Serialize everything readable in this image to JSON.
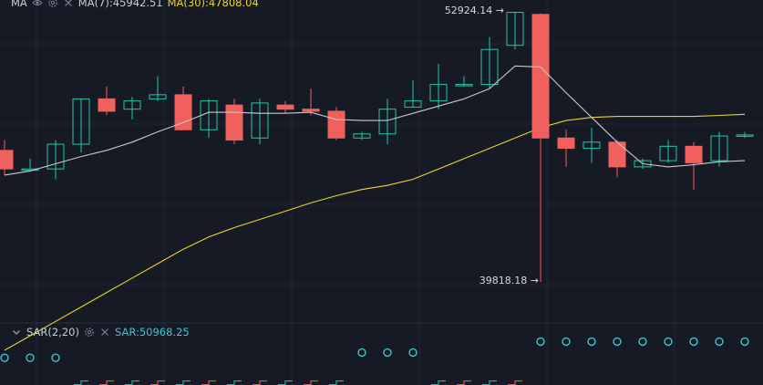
{
  "main_header": {
    "indicator": "MA",
    "ma7_label": "MA(7):45942.51",
    "ma30_label": "MA(30):47808.04"
  },
  "sar_header": {
    "indicator": "SAR(2,20)",
    "value_label": "SAR:50968.25"
  },
  "annotations": {
    "high_label": "52924.14 →",
    "low_label": "39818.18 →"
  },
  "colors": {
    "background": "#161a25",
    "up": "#26c6a0",
    "down": "#f0605d",
    "ma7": "#c8c8d2",
    "ma30": "#e8d52f",
    "sar": "#3fc5cf",
    "grid": "#222735"
  },
  "chart_data": {
    "type": "candlestick",
    "panels": [
      "price",
      "sar"
    ],
    "y_range_approx": [
      38000,
      53500
    ],
    "candles": [
      {
        "o": 46200,
        "h": 46700,
        "l": 45000,
        "c": 45300
      },
      {
        "o": 45300,
        "h": 45800,
        "l": 45300,
        "c": 45300
      },
      {
        "o": 45300,
        "h": 46700,
        "l": 44800,
        "c": 46500
      },
      {
        "o": 46500,
        "h": 48700,
        "l": 46100,
        "c": 48700
      },
      {
        "o": 48700,
        "h": 49300,
        "l": 47900,
        "c": 48100
      },
      {
        "o": 48200,
        "h": 48800,
        "l": 47700,
        "c": 48600
      },
      {
        "o": 48700,
        "h": 49800,
        "l": 48600,
        "c": 48900
      },
      {
        "o": 48900,
        "h": 49300,
        "l": 47200,
        "c": 47200
      },
      {
        "o": 47200,
        "h": 48700,
        "l": 46800,
        "c": 48600
      },
      {
        "o": 48400,
        "h": 48700,
        "l": 46500,
        "c": 46700
      },
      {
        "o": 46800,
        "h": 48700,
        "l": 46500,
        "c": 48500
      },
      {
        "o": 48400,
        "h": 48600,
        "l": 48000,
        "c": 48200
      },
      {
        "o": 48200,
        "h": 49200,
        "l": 47900,
        "c": 48100
      },
      {
        "o": 48100,
        "h": 48300,
        "l": 46700,
        "c": 46800
      },
      {
        "o": 46800,
        "h": 47100,
        "l": 46700,
        "c": 47000
      },
      {
        "o": 47000,
        "h": 48700,
        "l": 46500,
        "c": 48200
      },
      {
        "o": 48300,
        "h": 49600,
        "l": 48300,
        "c": 48600
      },
      {
        "o": 48600,
        "h": 50400,
        "l": 48200,
        "c": 49400
      },
      {
        "o": 49400,
        "h": 49800,
        "l": 49300,
        "c": 49400
      },
      {
        "o": 49400,
        "h": 51700,
        "l": 49200,
        "c": 51100
      },
      {
        "o": 51300,
        "h": 52900,
        "l": 51100,
        "c": 52900
      },
      {
        "o": 52800,
        "h": 52850,
        "l": 39818,
        "c": 46800
      },
      {
        "o": 46800,
        "h": 47200,
        "l": 45400,
        "c": 46300
      },
      {
        "o": 46300,
        "h": 47300,
        "l": 45600,
        "c": 46600
      },
      {
        "o": 46600,
        "h": 46700,
        "l": 44900,
        "c": 45400
      },
      {
        "o": 45400,
        "h": 45800,
        "l": 45300,
        "c": 45700
      },
      {
        "o": 45700,
        "h": 46700,
        "l": 45600,
        "c": 46400
      },
      {
        "o": 46400,
        "h": 46600,
        "l": 44300,
        "c": 45600
      },
      {
        "o": 45700,
        "h": 47100,
        "l": 45400,
        "c": 46900
      },
      {
        "o": 46900,
        "h": 47100,
        "l": 46800,
        "c": 46950
      }
    ],
    "ma7": [
      45000,
      45200,
      45550,
      45900,
      46200,
      46600,
      47100,
      47550,
      48050,
      48050,
      48000,
      48000,
      48050,
      47700,
      47650,
      47650,
      48000,
      48350,
      48700,
      49200,
      50300,
      50250,
      49000,
      47800,
      46600,
      45550,
      45400,
      45500,
      45650,
      45700
    ],
    "ma30": [
      36500,
      37200,
      37900,
      38600,
      39300,
      40000,
      40700,
      41400,
      42000,
      42450,
      42850,
      43250,
      43650,
      44000,
      44300,
      44500,
      44800,
      45300,
      45800,
      46300,
      46800,
      47300,
      47650,
      47800,
      47850,
      47850,
      47850,
      47850,
      47900,
      47950
    ],
    "sar": [
      {
        "v": 0.58,
        "trend": "up"
      },
      {
        "v": 0.58,
        "trend": "up"
      },
      {
        "v": 0.58,
        "trend": "up"
      },
      {
        "v": 0.05,
        "trend": "down"
      },
      {
        "v": 0.05,
        "trend": "down"
      },
      {
        "v": 0.05,
        "trend": "down"
      },
      {
        "v": 0.05,
        "trend": "down"
      },
      {
        "v": 0.05,
        "trend": "down"
      },
      {
        "v": 0.05,
        "trend": "down"
      },
      {
        "v": 0.05,
        "trend": "down"
      },
      {
        "v": 0.05,
        "trend": "down"
      },
      {
        "v": 0.05,
        "trend": "down"
      },
      {
        "v": 0.05,
        "trend": "down"
      },
      {
        "v": 0.05,
        "trend": "down"
      },
      {
        "v": 0.7,
        "trend": "up"
      },
      {
        "v": 0.7,
        "trend": "up"
      },
      {
        "v": 0.7,
        "trend": "up"
      },
      {
        "v": 0.05,
        "trend": "down"
      },
      {
        "v": 0.05,
        "trend": "down"
      },
      {
        "v": 0.05,
        "trend": "down"
      },
      {
        "v": 0.05,
        "trend": "down"
      },
      {
        "v": 0.95,
        "trend": "up"
      },
      {
        "v": 0.95,
        "trend": "up"
      },
      {
        "v": 0.95,
        "trend": "up"
      },
      {
        "v": 0.95,
        "trend": "up"
      },
      {
        "v": 0.95,
        "trend": "up"
      },
      {
        "v": 0.95,
        "trend": "up"
      },
      {
        "v": 0.95,
        "trend": "up"
      },
      {
        "v": 0.95,
        "trend": "up"
      },
      {
        "v": 0.95,
        "trend": "up"
      }
    ],
    "sar_value": 50968.25,
    "high": 52924.14,
    "low": 39818.18,
    "grid": true,
    "legend": "top-left"
  }
}
